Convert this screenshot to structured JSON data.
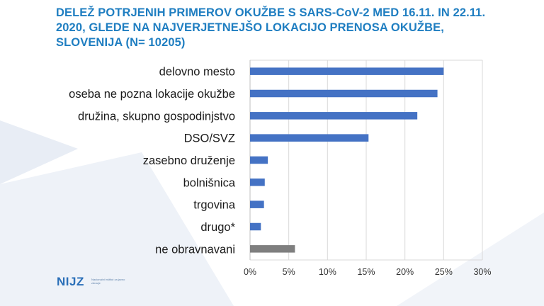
{
  "title": "DELEŽ POTRJENIH PRIMEROV OKUŽBE S SARS-CoV-2 MED 16.11. IN 22.11. 2020, GLEDE NA NAJVERJETNEJŠO LOKACIJO PRENOSA OKUŽBE, SLOVENIJA  (N= 10205)",
  "logo": {
    "text": "NIJZ",
    "subtitle": "Nacionalni inštitut za javno zdravje"
  },
  "colors": {
    "title": "#1f7ec1",
    "bar": "#4472c4",
    "bar_highlight": "#7f7f7f",
    "grid": "#d9d9d9"
  },
  "chart_data": {
    "type": "bar",
    "orientation": "horizontal",
    "title": "DELEŽ POTRJENIH PRIMEROV OKUŽBE S SARS-CoV-2 MED 16.11. IN 22.11. 2020, GLEDE NA NAJVERJETNEJŠO LOKACIJO PRENOSA OKUŽBE, SLOVENIJA  (N= 10205)",
    "xlabel": "",
    "ylabel": "",
    "categories": [
      "delovno mesto",
      "oseba ne pozna lokacije okužbe",
      "družina, skupno gospodinjstvo",
      "DSO/SVZ",
      "zasebno druženje",
      "bolnišnica",
      "trgovina",
      "drugo*",
      "ne obravnavani"
    ],
    "values": [
      25.0,
      24.2,
      21.6,
      15.3,
      2.3,
      1.9,
      1.8,
      1.4,
      5.8
    ],
    "bar_colors": [
      "#4472c4",
      "#4472c4",
      "#4472c4",
      "#4472c4",
      "#4472c4",
      "#4472c4",
      "#4472c4",
      "#4472c4",
      "#7f7f7f"
    ],
    "xlim": [
      0,
      30
    ],
    "xticks": [
      "0%",
      "5%",
      "10%",
      "15%",
      "20%",
      "25%",
      "30%"
    ],
    "grid": true,
    "legend": "none"
  }
}
